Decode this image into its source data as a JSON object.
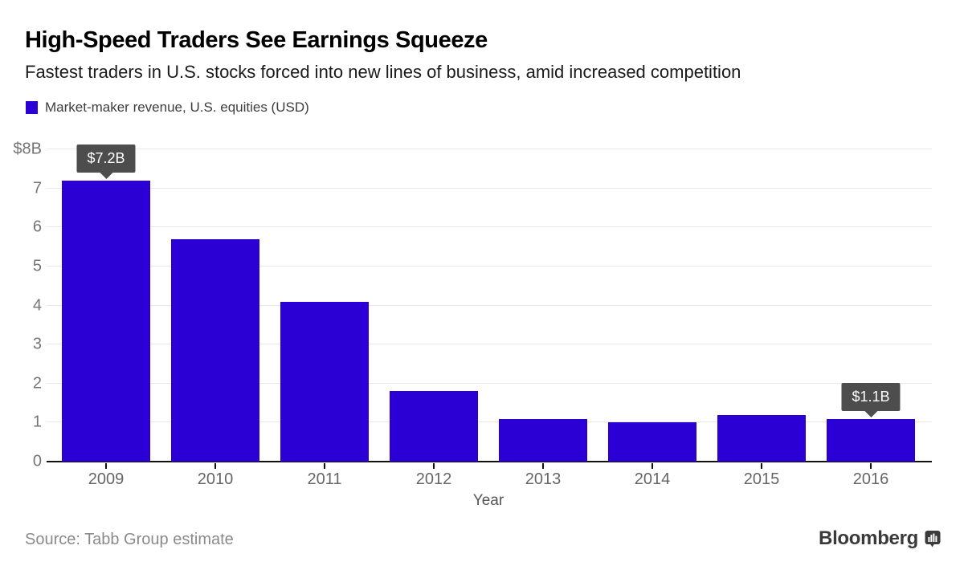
{
  "header": {
    "title": "High-Speed Traders See Earnings Squeeze",
    "subtitle": "Fastest traders in U.S. stocks forced into new lines of business, amid increased competition",
    "legend": {
      "label": "Market-maker revenue, U.S. equities (USD)",
      "color": "#2a00d4"
    }
  },
  "chart_data": {
    "type": "bar",
    "title": "Market-maker revenue, U.S. equities (USD)",
    "categories": [
      "2009",
      "2010",
      "2011",
      "2012",
      "2013",
      "2014",
      "2015",
      "2016"
    ],
    "values": [
      7.2,
      5.7,
      4.1,
      1.8,
      1.1,
      1.0,
      1.2,
      1.1
    ],
    "xlabel": "Year",
    "ylabel": "",
    "ylim": [
      0,
      8
    ],
    "ytick_labels": [
      "0",
      "1",
      "2",
      "3",
      "4",
      "5",
      "6",
      "7",
      "$8B"
    ],
    "grid": true,
    "legend_position": "top-left",
    "bar_color": "#2a00d4",
    "annotations": [
      {
        "index": 0,
        "label": "$7.2B"
      },
      {
        "index": 7,
        "label": "$1.1B"
      }
    ],
    "annotation_bg": "#4d4d4d"
  },
  "footer": {
    "source": "Source: Tabb Group estimate",
    "brand": "Bloomberg"
  }
}
